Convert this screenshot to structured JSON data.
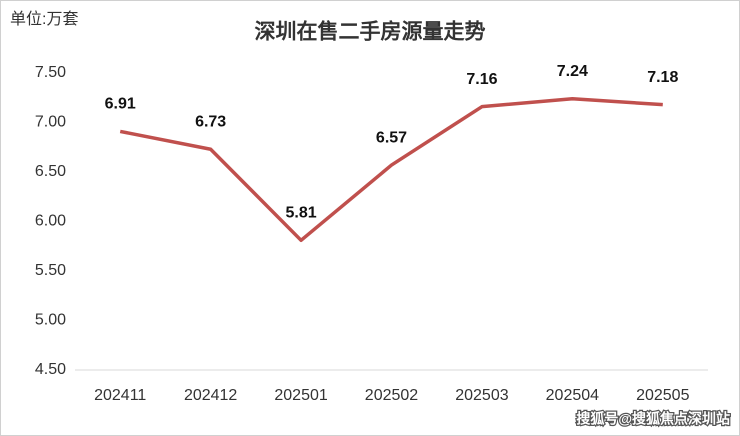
{
  "chart_data": {
    "type": "line",
    "title": "深圳在售二手房源量走势",
    "unit_label": "单位:万套",
    "watermark": "搜狐号@搜狐焦点深圳站",
    "categories": [
      "202411",
      "202412",
      "202501",
      "202502",
      "202503",
      "202504",
      "202505"
    ],
    "series": [
      {
        "color": "#c0504d",
        "values": [
          6.91,
          6.73,
          5.81,
          6.57,
          7.16,
          7.24,
          7.18
        ]
      }
    ],
    "ylim": [
      4.5,
      7.5
    ],
    "yticks": [
      {
        "value": 4.5,
        "label": "4.50"
      },
      {
        "value": 5,
        "label": "5.00"
      },
      {
        "value": 5.5,
        "label": "5.50"
      },
      {
        "value": 6,
        "label": "6.00"
      },
      {
        "value": 6.5,
        "label": "6.50"
      },
      {
        "value": 7,
        "label": "7.00"
      },
      {
        "value": 7.5,
        "label": "7.50"
      }
    ],
    "grid": false
  }
}
